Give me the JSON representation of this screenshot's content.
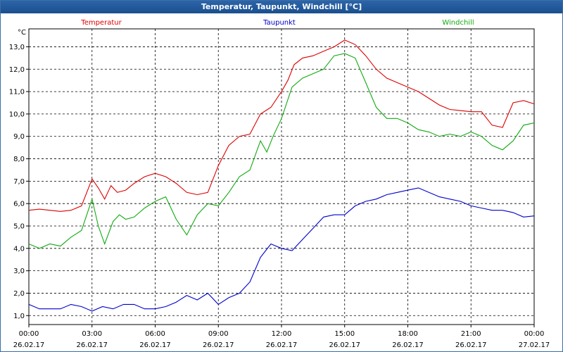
{
  "window": {
    "title": "Temperatur, Taupunkt, Windchill [°C]"
  },
  "chart_data": {
    "type": "line",
    "title": "Temperatur, Taupunkt, Windchill [°C]",
    "ylabel": "°C",
    "xlabel": "",
    "x_unit": "hours from 26.02.17 00:00",
    "xlim": [
      0,
      24
    ],
    "ylim": [
      0.6,
      13.8
    ],
    "grid": true,
    "x_ticks": [
      {
        "x": 0,
        "time": "00:00",
        "date": "26.02.17"
      },
      {
        "x": 3,
        "time": "03:00",
        "date": "26.02.17"
      },
      {
        "x": 6,
        "time": "06:00",
        "date": "26.02.17"
      },
      {
        "x": 9,
        "time": "09:00",
        "date": "26.02.17"
      },
      {
        "x": 12,
        "time": "12:00",
        "date": "26.02.17"
      },
      {
        "x": 15,
        "time": "15:00",
        "date": "26.02.17"
      },
      {
        "x": 18,
        "time": "18:00",
        "date": "26.02.17"
      },
      {
        "x": 21,
        "time": "21:00",
        "date": "26.02.17"
      },
      {
        "x": 24,
        "time": "00:00",
        "date": "27.02.17"
      }
    ],
    "y_ticks": [
      "1,0",
      "2,0",
      "3,0",
      "4,0",
      "5,0",
      "6,0",
      "7,0",
      "8,0",
      "9,0",
      "10,0",
      "11,0",
      "12,0",
      "13,0"
    ],
    "y_tick_values": [
      1,
      2,
      3,
      4,
      5,
      6,
      7,
      8,
      9,
      10,
      11,
      12,
      13
    ],
    "legend_placement": "top",
    "series": [
      {
        "name": "Temperatur",
        "color": "#dd0000",
        "points": [
          [
            0,
            5.7
          ],
          [
            0.5,
            5.75
          ],
          [
            1,
            5.7
          ],
          [
            1.5,
            5.65
          ],
          [
            2,
            5.7
          ],
          [
            2.5,
            5.9
          ],
          [
            3,
            7.1
          ],
          [
            3.3,
            6.7
          ],
          [
            3.6,
            6.2
          ],
          [
            3.9,
            6.8
          ],
          [
            4.2,
            6.5
          ],
          [
            4.6,
            6.6
          ],
          [
            5,
            6.9
          ],
          [
            5.5,
            7.2
          ],
          [
            6,
            7.35
          ],
          [
            6.5,
            7.2
          ],
          [
            7,
            6.9
          ],
          [
            7.5,
            6.5
          ],
          [
            8,
            6.4
          ],
          [
            8.5,
            6.5
          ],
          [
            9,
            7.7
          ],
          [
            9.5,
            8.6
          ],
          [
            10,
            9.0
          ],
          [
            10.5,
            9.1
          ],
          [
            11,
            10.0
          ],
          [
            11.5,
            10.3
          ],
          [
            12,
            11.0
          ],
          [
            12.3,
            11.5
          ],
          [
            12.6,
            12.2
          ],
          [
            13,
            12.5
          ],
          [
            13.5,
            12.6
          ],
          [
            14,
            12.8
          ],
          [
            14.5,
            13.0
          ],
          [
            15,
            13.3
          ],
          [
            15.5,
            13.1
          ],
          [
            16,
            12.6
          ],
          [
            16.5,
            12.0
          ],
          [
            17,
            11.6
          ],
          [
            17.5,
            11.4
          ],
          [
            18,
            11.2
          ],
          [
            18.5,
            11.0
          ],
          [
            19,
            10.7
          ],
          [
            19.5,
            10.4
          ],
          [
            20,
            10.2
          ],
          [
            20.5,
            10.15
          ],
          [
            21,
            10.1
          ],
          [
            21.5,
            10.1
          ],
          [
            22,
            9.5
          ],
          [
            22.5,
            9.4
          ],
          [
            23,
            10.5
          ],
          [
            23.5,
            10.6
          ],
          [
            24,
            10.45
          ]
        ]
      },
      {
        "name": "Taupunkt",
        "color": "#0000cc",
        "points": [
          [
            0,
            1.5
          ],
          [
            0.5,
            1.3
          ],
          [
            1,
            1.3
          ],
          [
            1.5,
            1.3
          ],
          [
            2,
            1.5
          ],
          [
            2.5,
            1.4
          ],
          [
            3,
            1.2
          ],
          [
            3.5,
            1.4
          ],
          [
            4,
            1.3
          ],
          [
            4.5,
            1.5
          ],
          [
            5,
            1.5
          ],
          [
            5.5,
            1.3
          ],
          [
            6,
            1.3
          ],
          [
            6.5,
            1.4
          ],
          [
            7,
            1.6
          ],
          [
            7.5,
            1.9
          ],
          [
            8,
            1.7
          ],
          [
            8.5,
            2.0
          ],
          [
            9,
            1.5
          ],
          [
            9.5,
            1.8
          ],
          [
            10,
            2.0
          ],
          [
            10.5,
            2.5
          ],
          [
            11,
            3.6
          ],
          [
            11.5,
            4.2
          ],
          [
            12,
            4.0
          ],
          [
            12.5,
            3.9
          ],
          [
            13,
            4.4
          ],
          [
            13.5,
            4.9
          ],
          [
            14,
            5.4
          ],
          [
            14.5,
            5.5
          ],
          [
            15,
            5.5
          ],
          [
            15.5,
            5.9
          ],
          [
            16,
            6.1
          ],
          [
            16.5,
            6.2
          ],
          [
            17,
            6.4
          ],
          [
            17.5,
            6.5
          ],
          [
            18,
            6.6
          ],
          [
            18.5,
            6.7
          ],
          [
            19,
            6.5
          ],
          [
            19.5,
            6.3
          ],
          [
            20,
            6.2
          ],
          [
            20.5,
            6.1
          ],
          [
            21,
            5.9
          ],
          [
            21.5,
            5.8
          ],
          [
            22,
            5.7
          ],
          [
            22.5,
            5.7
          ],
          [
            23,
            5.6
          ],
          [
            23.5,
            5.4
          ],
          [
            24,
            5.45
          ]
        ]
      },
      {
        "name": "Windchill",
        "color": "#11aa11",
        "points": [
          [
            0,
            4.2
          ],
          [
            0.5,
            4.0
          ],
          [
            1,
            4.2
          ],
          [
            1.5,
            4.1
          ],
          [
            2,
            4.5
          ],
          [
            2.5,
            4.8
          ],
          [
            3,
            6.2
          ],
          [
            3.3,
            5.0
          ],
          [
            3.6,
            4.2
          ],
          [
            4,
            5.2
          ],
          [
            4.3,
            5.5
          ],
          [
            4.6,
            5.3
          ],
          [
            5,
            5.4
          ],
          [
            5.5,
            5.8
          ],
          [
            6,
            6.1
          ],
          [
            6.5,
            6.3
          ],
          [
            7,
            5.3
          ],
          [
            7.5,
            4.6
          ],
          [
            8,
            5.5
          ],
          [
            8.5,
            6.0
          ],
          [
            9,
            5.9
          ],
          [
            9.5,
            6.5
          ],
          [
            10,
            7.2
          ],
          [
            10.5,
            7.5
          ],
          [
            11,
            8.8
          ],
          [
            11.3,
            8.3
          ],
          [
            11.6,
            9.0
          ],
          [
            12,
            9.8
          ],
          [
            12.5,
            11.2
          ],
          [
            13,
            11.6
          ],
          [
            13.5,
            11.8
          ],
          [
            14,
            12.0
          ],
          [
            14.5,
            12.6
          ],
          [
            15,
            12.7
          ],
          [
            15.5,
            12.5
          ],
          [
            16,
            11.4
          ],
          [
            16.5,
            10.3
          ],
          [
            17,
            9.8
          ],
          [
            17.5,
            9.8
          ],
          [
            18,
            9.6
          ],
          [
            18.5,
            9.3
          ],
          [
            19,
            9.2
          ],
          [
            19.5,
            9.0
          ],
          [
            20,
            9.1
          ],
          [
            20.5,
            9.0
          ],
          [
            21,
            9.2
          ],
          [
            21.5,
            9.0
          ],
          [
            22,
            8.6
          ],
          [
            22.5,
            8.4
          ],
          [
            23,
            8.8
          ],
          [
            23.5,
            9.5
          ],
          [
            24,
            9.6
          ]
        ]
      }
    ]
  }
}
